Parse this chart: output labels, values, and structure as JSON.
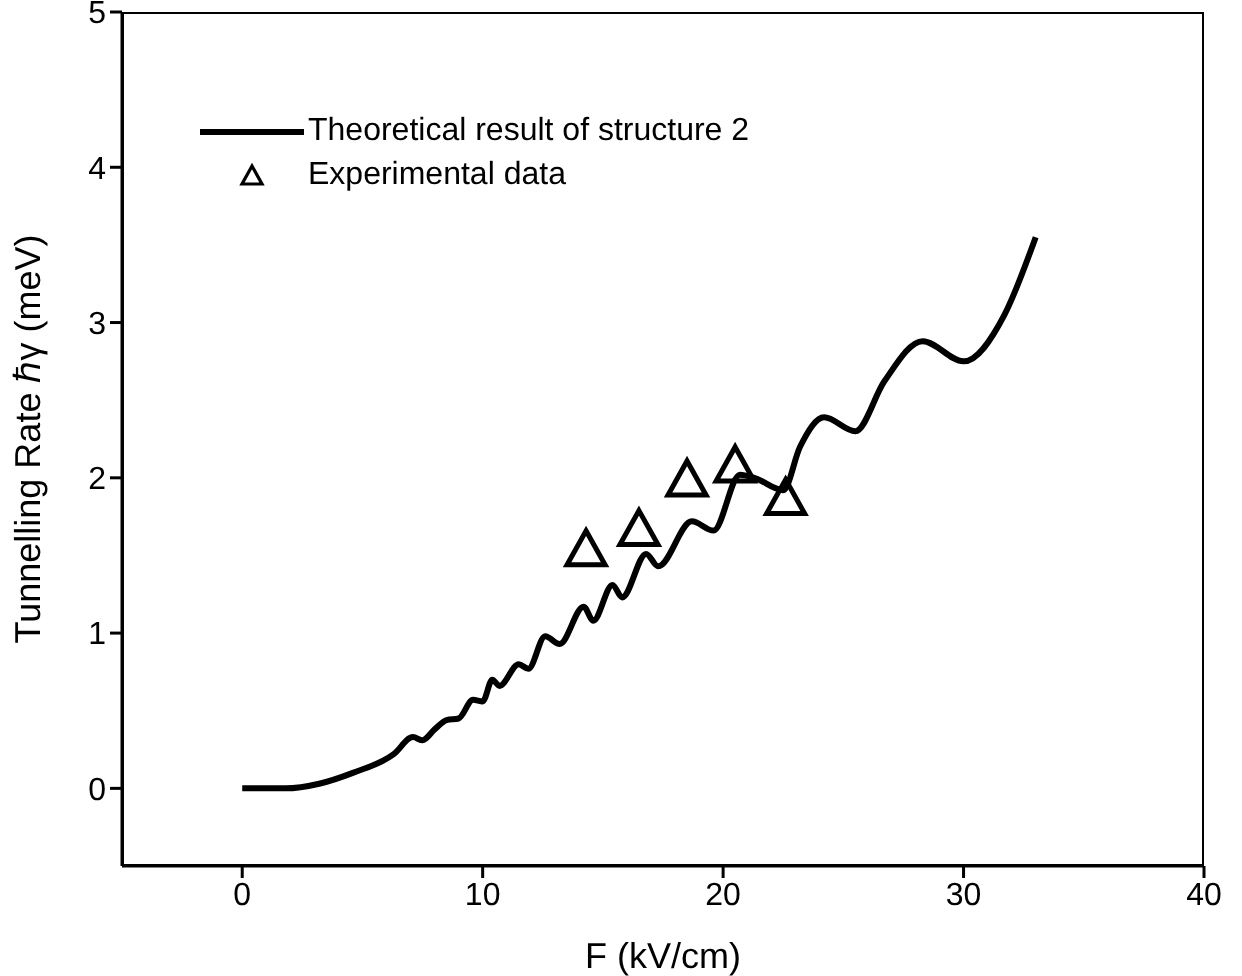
{
  "chart_data": {
    "type": "line",
    "xlabel": "F (kV/cm)",
    "ylabel": "Tunnelling Rate ℏγ (meV)",
    "xlim": [
      -5,
      40
    ],
    "xticks": [
      0,
      10,
      20,
      30,
      40
    ],
    "ylim": [
      -0.5,
      5
    ],
    "yticks": [
      0,
      1,
      2,
      3,
      4,
      5
    ],
    "grid": false,
    "legend": "top left",
    "series": [
      {
        "name": "Theoretical result of structure 2",
        "type": "line",
        "color": "#000000",
        "marker": "none",
        "line_style": "solid",
        "x": [
          0,
          1.8,
          3.2,
          4.6,
          6.3,
          7.1,
          7.5,
          8.0,
          8.5,
          9.0,
          9.6,
          10.0,
          10.4,
          10.7,
          11.5,
          11.9,
          12.6,
          13.2,
          14.2,
          14.6,
          15.4,
          15.8,
          16.8,
          17.3,
          18.7,
          19.6,
          20.7,
          21.3,
          22.5,
          23.2,
          24.2,
          25.5,
          26.7,
          28.3,
          30.0,
          31.7,
          33.0
        ],
        "values": [
          0,
          0,
          0.03,
          0.1,
          0.22,
          0.33,
          0.31,
          0.38,
          0.44,
          0.45,
          0.57,
          0.56,
          0.7,
          0.66,
          0.8,
          0.77,
          0.98,
          0.93,
          1.17,
          1.08,
          1.31,
          1.23,
          1.51,
          1.43,
          1.72,
          1.66,
          2.02,
          2.0,
          1.92,
          2.2,
          2.39,
          2.3,
          2.62,
          2.88,
          2.75,
          3.05,
          3.55
        ]
      },
      {
        "name": "Experimental data",
        "type": "scatter",
        "color": "#000000",
        "marker": "triangle",
        "x": [
          14.3,
          16.5,
          18.5,
          20.5,
          22.6
        ],
        "values": [
          1.53,
          1.66,
          1.98,
          2.07,
          1.86
        ]
      }
    ]
  }
}
